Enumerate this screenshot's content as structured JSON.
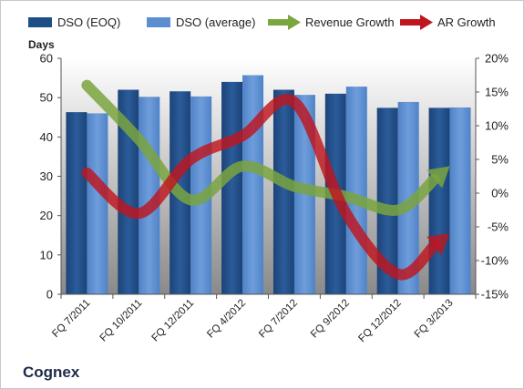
{
  "company": "Cognex",
  "chart_data": {
    "type": "bar",
    "categories": [
      "FQ 7/2011",
      "FQ 10/2011",
      "FQ 12/2011",
      "FQ 4/2012",
      "FQ 7/2012",
      "FQ 9/2012",
      "FQ 12/2012",
      "FQ 3/2013"
    ],
    "series": [
      {
        "name": "DSO (EOQ)",
        "type": "bar",
        "axis": "left",
        "values": [
          46.3,
          52.0,
          51.6,
          54.0,
          52.0,
          51.0,
          47.4,
          47.4
        ]
      },
      {
        "name": "DSO (average)",
        "type": "bar",
        "axis": "left",
        "values": [
          46.0,
          50.2,
          50.3,
          55.7,
          50.7,
          52.8,
          48.9,
          47.5
        ]
      },
      {
        "name": "Revenue Growth",
        "type": "line",
        "axis": "right",
        "values": [
          16.0,
          8.0,
          -1.0,
          4.0,
          1.0,
          -0.5,
          -2.5,
          4.0
        ]
      },
      {
        "name": "AR Growth",
        "type": "line",
        "axis": "right",
        "values": [
          3.0,
          -3.0,
          5.0,
          8.5,
          13.5,
          -3.0,
          -12.0,
          -6.0
        ]
      }
    ],
    "ylabel": "Days",
    "ylim": [
      0,
      60
    ],
    "yticks": [
      "0",
      "10",
      "20",
      "30",
      "40",
      "50",
      "60"
    ],
    "y2lim": [
      -15,
      20
    ],
    "y2ticks": [
      "-15%",
      "-10%",
      "-5%",
      "0%",
      "5%",
      "10%",
      "15%",
      "20%"
    ],
    "legend_position": "top",
    "grid": false,
    "colors": {
      "DSO (EOQ)": "#1f4e87",
      "DSO (average)": "#5b8fd2",
      "Revenue Growth": "#7aa53f",
      "AR Growth": "#c0151f",
      "plot_background_top": "#ffffff",
      "plot_background_bottom": "#8a8a8a"
    }
  }
}
